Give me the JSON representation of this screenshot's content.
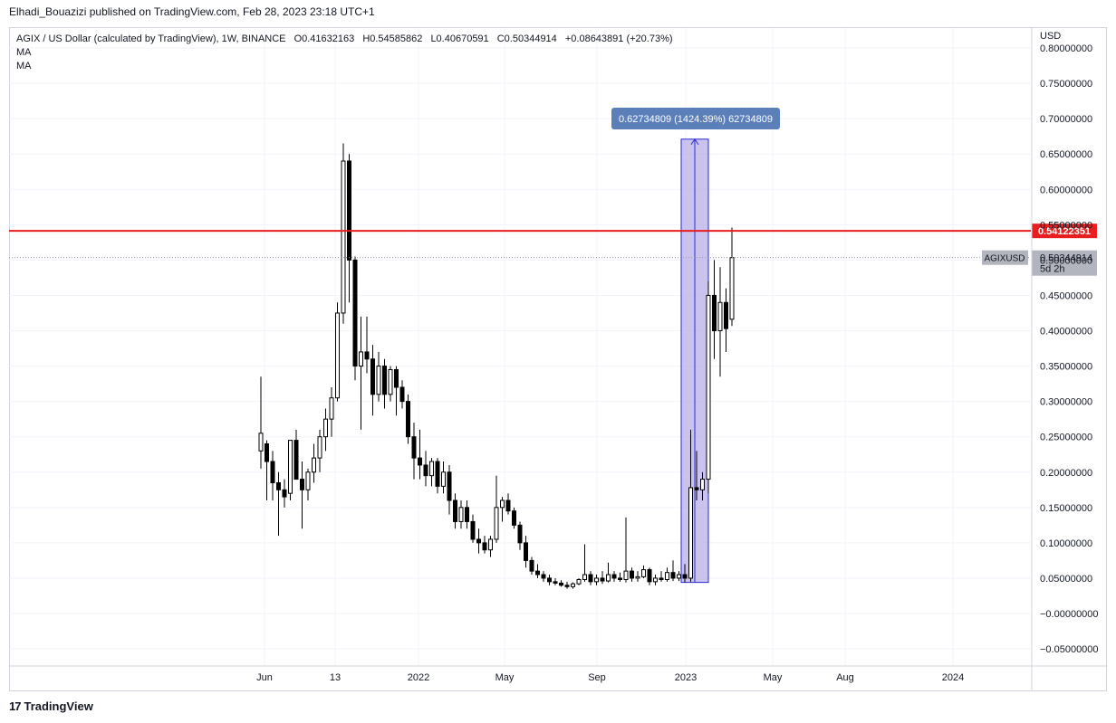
{
  "header": {
    "published_text": "Elhadi_Bouazizi published on TradingView.com, Feb 28, 2023 23:18 UTC+1"
  },
  "legend": {
    "symbol_text": "AGIX / US Dollar (calculated by TradingView), 1W, BINANCE",
    "open": "O0.41632163",
    "high": "H0.54585862",
    "low": "L0.40670591",
    "close": "C0.50344914",
    "change": "+0.08643891 (+20.73%)",
    "ma1": "MA",
    "ma2": "MA"
  },
  "price_axis": {
    "currency": "USD",
    "ticks": [
      "0.80000000",
      "0.75000000",
      "0.70000000",
      "0.65000000",
      "0.60000000",
      "0.55000000",
      "0.50000000",
      "0.45000000",
      "0.40000000",
      "0.35000000",
      "0.30000000",
      "0.25000000",
      "0.20000000",
      "0.15000000",
      "0.10000000",
      "0.05000000",
      "−0.00000000",
      "−0.05000000"
    ],
    "horizontal_line_label": "0.54122351",
    "symbol_tag": "AGIXUSD",
    "last_price_label": "0.50344914",
    "countdown": "5d 2h"
  },
  "time_axis": {
    "ticks": [
      "Jun",
      "13",
      "2022",
      "May",
      "Sep",
      "2023",
      "May",
      "Aug",
      "2024"
    ]
  },
  "measure_tool": {
    "label": "0.62734809 (1424.39%) 62734809"
  },
  "footer": {
    "brand": "TradingView"
  },
  "colors": {
    "horizontal_line": "#e91e1e",
    "measure_fill": "#b3a9e6",
    "measure_border": "#2929d6",
    "measure_label_bg": "#5b7fb8",
    "grid": "#f0f3fa",
    "candle": "#000000",
    "last_price_bg": "#b2b5be"
  },
  "chart_data": {
    "type": "candlestick",
    "title": "AGIX / US Dollar (calculated by TradingView), 1W, BINANCE",
    "ylim": [
      -0.07,
      0.81
    ],
    "y_ticks": [
      0.8,
      0.75,
      0.7,
      0.65,
      0.6,
      0.55,
      0.5,
      0.45,
      0.4,
      0.35,
      0.3,
      0.25,
      0.2,
      0.15,
      0.1,
      0.05,
      0.0,
      -0.05
    ],
    "x_tick_labels": [
      "Jun",
      "13",
      "2022",
      "May",
      "Sep",
      "2023",
      "May",
      "Aug",
      "2024"
    ],
    "horizontal_line": 0.54122351,
    "last_price": 0.50344914,
    "measure": {
      "from_price": 0.044,
      "to_price": 0.671,
      "change": 0.62734809,
      "percent": 1424.39
    },
    "candles": [
      {
        "o": 0.23,
        "h": 0.335,
        "l": 0.205,
        "c": 0.255
      },
      {
        "o": 0.24,
        "h": 0.245,
        "l": 0.16,
        "c": 0.215
      },
      {
        "o": 0.215,
        "h": 0.23,
        "l": 0.16,
        "c": 0.185
      },
      {
        "o": 0.185,
        "h": 0.2,
        "l": 0.11,
        "c": 0.175
      },
      {
        "o": 0.175,
        "h": 0.19,
        "l": 0.15,
        "c": 0.165
      },
      {
        "o": 0.17,
        "h": 0.24,
        "l": 0.16,
        "c": 0.245
      },
      {
        "o": 0.245,
        "h": 0.26,
        "l": 0.19,
        "c": 0.19
      },
      {
        "o": 0.19,
        "h": 0.215,
        "l": 0.12,
        "c": 0.175
      },
      {
        "o": 0.175,
        "h": 0.205,
        "l": 0.16,
        "c": 0.2
      },
      {
        "o": 0.2,
        "h": 0.24,
        "l": 0.185,
        "c": 0.22
      },
      {
        "o": 0.22,
        "h": 0.26,
        "l": 0.2,
        "c": 0.25
      },
      {
        "o": 0.25,
        "h": 0.29,
        "l": 0.23,
        "c": 0.275
      },
      {
        "o": 0.275,
        "h": 0.32,
        "l": 0.25,
        "c": 0.305
      },
      {
        "o": 0.305,
        "h": 0.44,
        "l": 0.3,
        "c": 0.425
      },
      {
        "o": 0.425,
        "h": 0.665,
        "l": 0.41,
        "c": 0.64
      },
      {
        "o": 0.64,
        "h": 0.65,
        "l": 0.44,
        "c": 0.5
      },
      {
        "o": 0.5,
        "h": 0.505,
        "l": 0.33,
        "c": 0.35
      },
      {
        "o": 0.35,
        "h": 0.42,
        "l": 0.26,
        "c": 0.37
      },
      {
        "o": 0.37,
        "h": 0.42,
        "l": 0.34,
        "c": 0.36
      },
      {
        "o": 0.36,
        "h": 0.38,
        "l": 0.28,
        "c": 0.31
      },
      {
        "o": 0.31,
        "h": 0.37,
        "l": 0.3,
        "c": 0.35
      },
      {
        "o": 0.35,
        "h": 0.36,
        "l": 0.29,
        "c": 0.31
      },
      {
        "o": 0.31,
        "h": 0.35,
        "l": 0.3,
        "c": 0.345
      },
      {
        "o": 0.345,
        "h": 0.35,
        "l": 0.28,
        "c": 0.32
      },
      {
        "o": 0.32,
        "h": 0.33,
        "l": 0.29,
        "c": 0.3
      },
      {
        "o": 0.3,
        "h": 0.31,
        "l": 0.24,
        "c": 0.25
      },
      {
        "o": 0.25,
        "h": 0.27,
        "l": 0.19,
        "c": 0.22
      },
      {
        "o": 0.22,
        "h": 0.26,
        "l": 0.19,
        "c": 0.21
      },
      {
        "o": 0.21,
        "h": 0.23,
        "l": 0.18,
        "c": 0.195
      },
      {
        "o": 0.195,
        "h": 0.22,
        "l": 0.18,
        "c": 0.215
      },
      {
        "o": 0.215,
        "h": 0.22,
        "l": 0.17,
        "c": 0.18
      },
      {
        "o": 0.18,
        "h": 0.215,
        "l": 0.17,
        "c": 0.2
      },
      {
        "o": 0.2,
        "h": 0.21,
        "l": 0.14,
        "c": 0.16
      },
      {
        "o": 0.16,
        "h": 0.17,
        "l": 0.12,
        "c": 0.13
      },
      {
        "o": 0.13,
        "h": 0.16,
        "l": 0.12,
        "c": 0.15
      },
      {
        "o": 0.15,
        "h": 0.16,
        "l": 0.12,
        "c": 0.13
      },
      {
        "o": 0.13,
        "h": 0.14,
        "l": 0.1,
        "c": 0.105
      },
      {
        "o": 0.105,
        "h": 0.12,
        "l": 0.085,
        "c": 0.1
      },
      {
        "o": 0.1,
        "h": 0.11,
        "l": 0.085,
        "c": 0.09
      },
      {
        "o": 0.09,
        "h": 0.11,
        "l": 0.08,
        "c": 0.105
      },
      {
        "o": 0.105,
        "h": 0.195,
        "l": 0.1,
        "c": 0.15
      },
      {
        "o": 0.15,
        "h": 0.165,
        "l": 0.13,
        "c": 0.16
      },
      {
        "o": 0.16,
        "h": 0.17,
        "l": 0.14,
        "c": 0.145
      },
      {
        "o": 0.145,
        "h": 0.15,
        "l": 0.12,
        "c": 0.125
      },
      {
        "o": 0.125,
        "h": 0.13,
        "l": 0.09,
        "c": 0.1
      },
      {
        "o": 0.1,
        "h": 0.11,
        "l": 0.065,
        "c": 0.075
      },
      {
        "o": 0.075,
        "h": 0.08,
        "l": 0.055,
        "c": 0.06
      },
      {
        "o": 0.06,
        "h": 0.07,
        "l": 0.05,
        "c": 0.055
      },
      {
        "o": 0.055,
        "h": 0.06,
        "l": 0.045,
        "c": 0.05
      },
      {
        "o": 0.05,
        "h": 0.055,
        "l": 0.04,
        "c": 0.045
      },
      {
        "o": 0.045,
        "h": 0.05,
        "l": 0.04,
        "c": 0.043
      },
      {
        "o": 0.043,
        "h": 0.047,
        "l": 0.038,
        "c": 0.04
      },
      {
        "o": 0.04,
        "h": 0.045,
        "l": 0.035,
        "c": 0.038
      },
      {
        "o": 0.038,
        "h": 0.044,
        "l": 0.035,
        "c": 0.042
      },
      {
        "o": 0.042,
        "h": 0.05,
        "l": 0.04,
        "c": 0.048
      },
      {
        "o": 0.048,
        "h": 0.098,
        "l": 0.045,
        "c": 0.055
      },
      {
        "o": 0.055,
        "h": 0.06,
        "l": 0.04,
        "c": 0.045
      },
      {
        "o": 0.045,
        "h": 0.055,
        "l": 0.04,
        "c": 0.05
      },
      {
        "o": 0.05,
        "h": 0.06,
        "l": 0.042,
        "c": 0.046
      },
      {
        "o": 0.046,
        "h": 0.072,
        "l": 0.044,
        "c": 0.055
      },
      {
        "o": 0.055,
        "h": 0.06,
        "l": 0.045,
        "c": 0.05
      },
      {
        "o": 0.05,
        "h": 0.058,
        "l": 0.045,
        "c": 0.048
      },
      {
        "o": 0.048,
        "h": 0.136,
        "l": 0.044,
        "c": 0.06
      },
      {
        "o": 0.06,
        "h": 0.065,
        "l": 0.045,
        "c": 0.05
      },
      {
        "o": 0.05,
        "h": 0.06,
        "l": 0.045,
        "c": 0.052
      },
      {
        "o": 0.052,
        "h": 0.068,
        "l": 0.05,
        "c": 0.062
      },
      {
        "o": 0.062,
        "h": 0.065,
        "l": 0.04,
        "c": 0.045
      },
      {
        "o": 0.045,
        "h": 0.055,
        "l": 0.04,
        "c": 0.05
      },
      {
        "o": 0.05,
        "h": 0.06,
        "l": 0.045,
        "c": 0.048
      },
      {
        "o": 0.048,
        "h": 0.065,
        "l": 0.045,
        "c": 0.058
      },
      {
        "o": 0.058,
        "h": 0.075,
        "l": 0.046,
        "c": 0.05
      },
      {
        "o": 0.05,
        "h": 0.06,
        "l": 0.046,
        "c": 0.055
      },
      {
        "o": 0.055,
        "h": 0.07,
        "l": 0.044,
        "c": 0.05
      },
      {
        "o": 0.05,
        "h": 0.26,
        "l": 0.045,
        "c": 0.178
      },
      {
        "o": 0.178,
        "h": 0.23,
        "l": 0.16,
        "c": 0.175
      },
      {
        "o": 0.175,
        "h": 0.2,
        "l": 0.16,
        "c": 0.19
      },
      {
        "o": 0.19,
        "h": 0.47,
        "l": 0.17,
        "c": 0.45
      },
      {
        "o": 0.45,
        "h": 0.5,
        "l": 0.36,
        "c": 0.4
      },
      {
        "o": 0.4,
        "h": 0.49,
        "l": 0.335,
        "c": 0.44
      },
      {
        "o": 0.44,
        "h": 0.46,
        "l": 0.37,
        "c": 0.403
      },
      {
        "o": 0.4163,
        "h": 0.5459,
        "l": 0.4067,
        "c": 0.5034
      }
    ]
  }
}
